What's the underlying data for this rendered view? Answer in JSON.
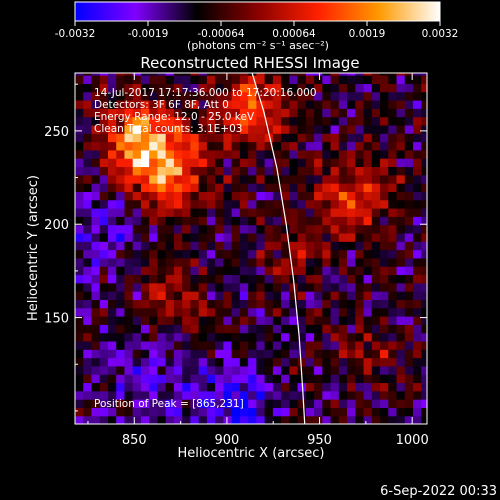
{
  "chart_data": {
    "type": "heatmap",
    "title": "Reconstructed RHESSI Image",
    "xlabel": "Heliocentric X (arcsec)",
    "ylabel": "Heliocentric Y (arcsec)",
    "xlim": [
      818,
      1008
    ],
    "ylim": [
      93,
      281
    ],
    "x_ticks": [
      850,
      900,
      950,
      1000
    ],
    "y_ticks": [
      150,
      200,
      250
    ],
    "colorbar": {
      "range": [
        -0.0032,
        0.0032
      ],
      "tick_labels": [
        "-0.0032",
        "-0.0019",
        "-0.00064",
        "0.00064",
        "0.0019",
        "0.0032"
      ],
      "unit_label": "(photons cm⁻² s⁻¹ asec⁻²)",
      "colormap": [
        "#0000ff",
        "#8000ff",
        "#000000",
        "#8a0000",
        "#ff2000",
        "#ff9a00",
        "#ffffff"
      ]
    },
    "info_lines": [
      "14-Jul-2017 17:17:36.000 to 17:20:16.000",
      "Detectors: 3F 6F 8F, Att 0",
      "Energy Range: 12.0 - 25.0 keV",
      "Clean     Total counts: 3.1E+03"
    ],
    "peak_label": "Position of Peak = [865,231]",
    "peak": {
      "x": 865,
      "y": 231
    },
    "limb_curve": [
      [
        913,
        283
      ],
      [
        920,
        260
      ],
      [
        927,
        230
      ],
      [
        932,
        200
      ],
      [
        936,
        170
      ],
      [
        939,
        140
      ],
      [
        941,
        110
      ],
      [
        942,
        93
      ]
    ],
    "sources": [
      {
        "x": 865,
        "y": 231,
        "peak": 0.0032,
        "sigma": 16
      },
      {
        "x": 850,
        "y": 248,
        "peak": 0.0023,
        "sigma": 13
      },
      {
        "x": 912,
        "y": 262,
        "peak": 0.0024,
        "sigma": 14
      },
      {
        "x": 968,
        "y": 215,
        "peak": 0.0021,
        "sigma": 14
      },
      {
        "x": 870,
        "y": 160,
        "peak": 0.0014,
        "sigma": 15
      },
      {
        "x": 935,
        "y": 185,
        "peak": 0.0011,
        "sigma": 12
      },
      {
        "x": 975,
        "y": 130,
        "peak": 0.001,
        "sigma": 12
      },
      {
        "x": 830,
        "y": 200,
        "peak": -0.001,
        "sigma": 22
      },
      {
        "x": 905,
        "y": 105,
        "peak": -0.0016,
        "sigma": 14
      },
      {
        "x": 860,
        "y": 125,
        "peak": -0.0009,
        "sigma": 20
      }
    ]
  },
  "footer": {
    "timestamp": "6-Sep-2022 00:33"
  }
}
